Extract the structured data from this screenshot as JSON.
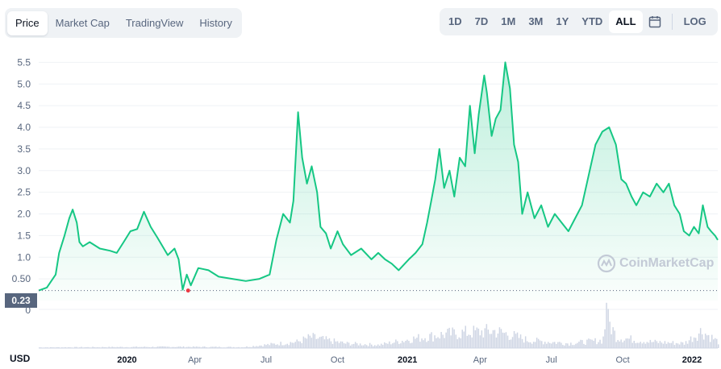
{
  "tabs": [
    {
      "label": "Price",
      "active": true
    },
    {
      "label": "Market Cap",
      "active": false
    },
    {
      "label": "TradingView",
      "active": false
    },
    {
      "label": "History",
      "active": false
    }
  ],
  "ranges": [
    {
      "label": "1D",
      "active": false
    },
    {
      "label": "7D",
      "active": false
    },
    {
      "label": "1M",
      "active": false
    },
    {
      "label": "3M",
      "active": false
    },
    {
      "label": "1Y",
      "active": false
    },
    {
      "label": "YTD",
      "active": false
    },
    {
      "label": "ALL",
      "active": true
    }
  ],
  "calendar_icon": "calendar-icon",
  "log_label": "LOG",
  "current_price_label": "0.23",
  "currency_label": "USD",
  "watermark": "CoinMarketCap",
  "colors": {
    "line": "#16c784",
    "low_marker": "#ea3943",
    "volume": "#cfd6e4"
  },
  "chart_data": {
    "type": "area",
    "y_ticks": [
      "0.50",
      "1.0",
      "1.5",
      "2.0",
      "2.5",
      "3.0",
      "3.5",
      "4.0",
      "4.5",
      "5.0",
      "5.5"
    ],
    "y_zero_label": "0",
    "ylim": [
      0,
      5.75
    ],
    "x_ticks": [
      {
        "label": "2020",
        "t": 0.13,
        "year": true
      },
      {
        "label": "Apr",
        "t": 0.23,
        "year": false
      },
      {
        "label": "Jul",
        "t": 0.335,
        "year": false
      },
      {
        "label": "Oct",
        "t": 0.44,
        "year": false
      },
      {
        "label": "2021",
        "t": 0.543,
        "year": true
      },
      {
        "label": "Apr",
        "t": 0.65,
        "year": false
      },
      {
        "label": "Jul",
        "t": 0.755,
        "year": false
      },
      {
        "label": "Oct",
        "t": 0.86,
        "year": false
      },
      {
        "label": "2022",
        "t": 0.962,
        "year": true
      }
    ],
    "series": [
      {
        "points": [
          [
            0.0,
            0.23
          ],
          [
            0.012,
            0.3
          ],
          [
            0.025,
            0.6
          ],
          [
            0.03,
            1.1
          ],
          [
            0.038,
            1.5
          ],
          [
            0.045,
            1.9
          ],
          [
            0.05,
            2.1
          ],
          [
            0.056,
            1.8
          ],
          [
            0.06,
            1.35
          ],
          [
            0.065,
            1.25
          ],
          [
            0.075,
            1.35
          ],
          [
            0.09,
            1.2
          ],
          [
            0.105,
            1.15
          ],
          [
            0.115,
            1.1
          ],
          [
            0.125,
            1.35
          ],
          [
            0.135,
            1.6
          ],
          [
            0.145,
            1.65
          ],
          [
            0.155,
            2.05
          ],
          [
            0.165,
            1.7
          ],
          [
            0.175,
            1.45
          ],
          [
            0.19,
            1.05
          ],
          [
            0.2,
            1.2
          ],
          [
            0.206,
            0.95
          ],
          [
            0.212,
            0.25
          ],
          [
            0.218,
            0.6
          ],
          [
            0.224,
            0.35
          ],
          [
            0.235,
            0.75
          ],
          [
            0.25,
            0.7
          ],
          [
            0.265,
            0.55
          ],
          [
            0.285,
            0.5
          ],
          [
            0.305,
            0.45
          ],
          [
            0.325,
            0.5
          ],
          [
            0.34,
            0.6
          ],
          [
            0.35,
            1.4
          ],
          [
            0.36,
            2.0
          ],
          [
            0.37,
            1.8
          ],
          [
            0.375,
            2.3
          ],
          [
            0.382,
            4.35
          ],
          [
            0.388,
            3.3
          ],
          [
            0.395,
            2.7
          ],
          [
            0.402,
            3.1
          ],
          [
            0.41,
            2.5
          ],
          [
            0.415,
            1.7
          ],
          [
            0.423,
            1.55
          ],
          [
            0.43,
            1.2
          ],
          [
            0.44,
            1.6
          ],
          [
            0.448,
            1.3
          ],
          [
            0.46,
            1.05
          ],
          [
            0.475,
            1.2
          ],
          [
            0.49,
            0.95
          ],
          [
            0.5,
            1.1
          ],
          [
            0.51,
            0.95
          ],
          [
            0.52,
            0.85
          ],
          [
            0.53,
            0.7
          ],
          [
            0.545,
            0.95
          ],
          [
            0.555,
            1.1
          ],
          [
            0.565,
            1.3
          ],
          [
            0.572,
            1.8
          ],
          [
            0.578,
            2.3
          ],
          [
            0.584,
            2.8
          ],
          [
            0.59,
            3.5
          ],
          [
            0.597,
            2.6
          ],
          [
            0.605,
            3.0
          ],
          [
            0.612,
            2.4
          ],
          [
            0.62,
            3.3
          ],
          [
            0.628,
            3.1
          ],
          [
            0.635,
            4.5
          ],
          [
            0.642,
            3.4
          ],
          [
            0.648,
            4.3
          ],
          [
            0.656,
            5.2
          ],
          [
            0.66,
            4.8
          ],
          [
            0.667,
            3.8
          ],
          [
            0.673,
            4.2
          ],
          [
            0.68,
            4.4
          ],
          [
            0.687,
            5.5
          ],
          [
            0.694,
            4.9
          ],
          [
            0.7,
            3.6
          ],
          [
            0.706,
            3.2
          ],
          [
            0.712,
            2.0
          ],
          [
            0.72,
            2.5
          ],
          [
            0.73,
            1.9
          ],
          [
            0.74,
            2.2
          ],
          [
            0.75,
            1.7
          ],
          [
            0.76,
            2.0
          ],
          [
            0.77,
            1.8
          ],
          [
            0.78,
            1.6
          ],
          [
            0.79,
            1.9
          ],
          [
            0.8,
            2.2
          ],
          [
            0.81,
            2.9
          ],
          [
            0.82,
            3.6
          ],
          [
            0.83,
            3.9
          ],
          [
            0.84,
            4.0
          ],
          [
            0.85,
            3.6
          ],
          [
            0.858,
            2.8
          ],
          [
            0.865,
            2.7
          ],
          [
            0.873,
            2.4
          ],
          [
            0.88,
            2.2
          ],
          [
            0.89,
            2.5
          ],
          [
            0.9,
            2.4
          ],
          [
            0.91,
            2.7
          ],
          [
            0.92,
            2.5
          ],
          [
            0.928,
            2.7
          ],
          [
            0.936,
            2.2
          ],
          [
            0.944,
            2.0
          ],
          [
            0.95,
            1.6
          ],
          [
            0.958,
            1.5
          ],
          [
            0.965,
            1.7
          ],
          [
            0.972,
            1.55
          ],
          [
            0.978,
            2.2
          ],
          [
            0.985,
            1.7
          ],
          [
            0.99,
            1.6
          ],
          [
            0.996,
            1.5
          ],
          [
            1.0,
            1.4
          ]
        ]
      }
    ],
    "low_point": [
      0.22,
      0.23
    ],
    "volume": [
      [
        0.0,
        0.02
      ],
      [
        0.1,
        0.03
      ],
      [
        0.2,
        0.04
      ],
      [
        0.3,
        0.03
      ],
      [
        0.38,
        0.2
      ],
      [
        0.4,
        0.35
      ],
      [
        0.45,
        0.15
      ],
      [
        0.5,
        0.1
      ],
      [
        0.55,
        0.3
      ],
      [
        0.6,
        0.45
      ],
      [
        0.63,
        0.5
      ],
      [
        0.67,
        0.55
      ],
      [
        0.69,
        0.45
      ],
      [
        0.72,
        0.25
      ],
      [
        0.78,
        0.15
      ],
      [
        0.83,
        0.25
      ],
      [
        0.835,
        1.0
      ],
      [
        0.85,
        0.35
      ],
      [
        0.9,
        0.2
      ],
      [
        0.95,
        0.15
      ],
      [
        0.975,
        0.55
      ],
      [
        1.0,
        0.2
      ]
    ]
  }
}
